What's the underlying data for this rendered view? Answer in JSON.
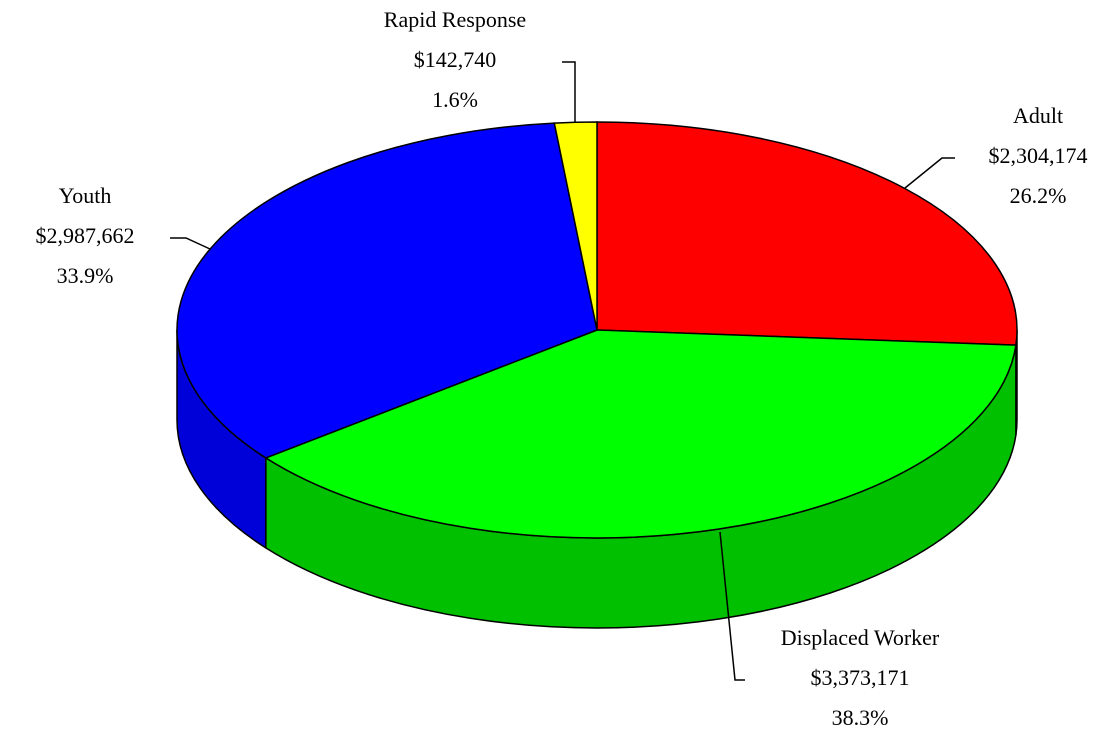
{
  "chart_data": {
    "type": "pie3d",
    "categories": [
      "Adult",
      "Displaced Worker",
      "Youth",
      "Rapid Response"
    ],
    "values": [
      2304174,
      3373171,
      2987662,
      142740
    ],
    "value_labels": [
      "$2,304,174",
      "$3,373,171",
      "$2,987,662",
      "$142,740"
    ],
    "percent_labels": [
      "26.2%",
      "38.3%",
      "33.9%",
      "1.6%"
    ],
    "colors": [
      "#ff0000",
      "#00ff00",
      "#0000ff",
      "#ffff00"
    ],
    "side_colors": [
      "#c80000",
      "#00c000",
      "#0000d8",
      "#c8c800"
    ]
  }
}
